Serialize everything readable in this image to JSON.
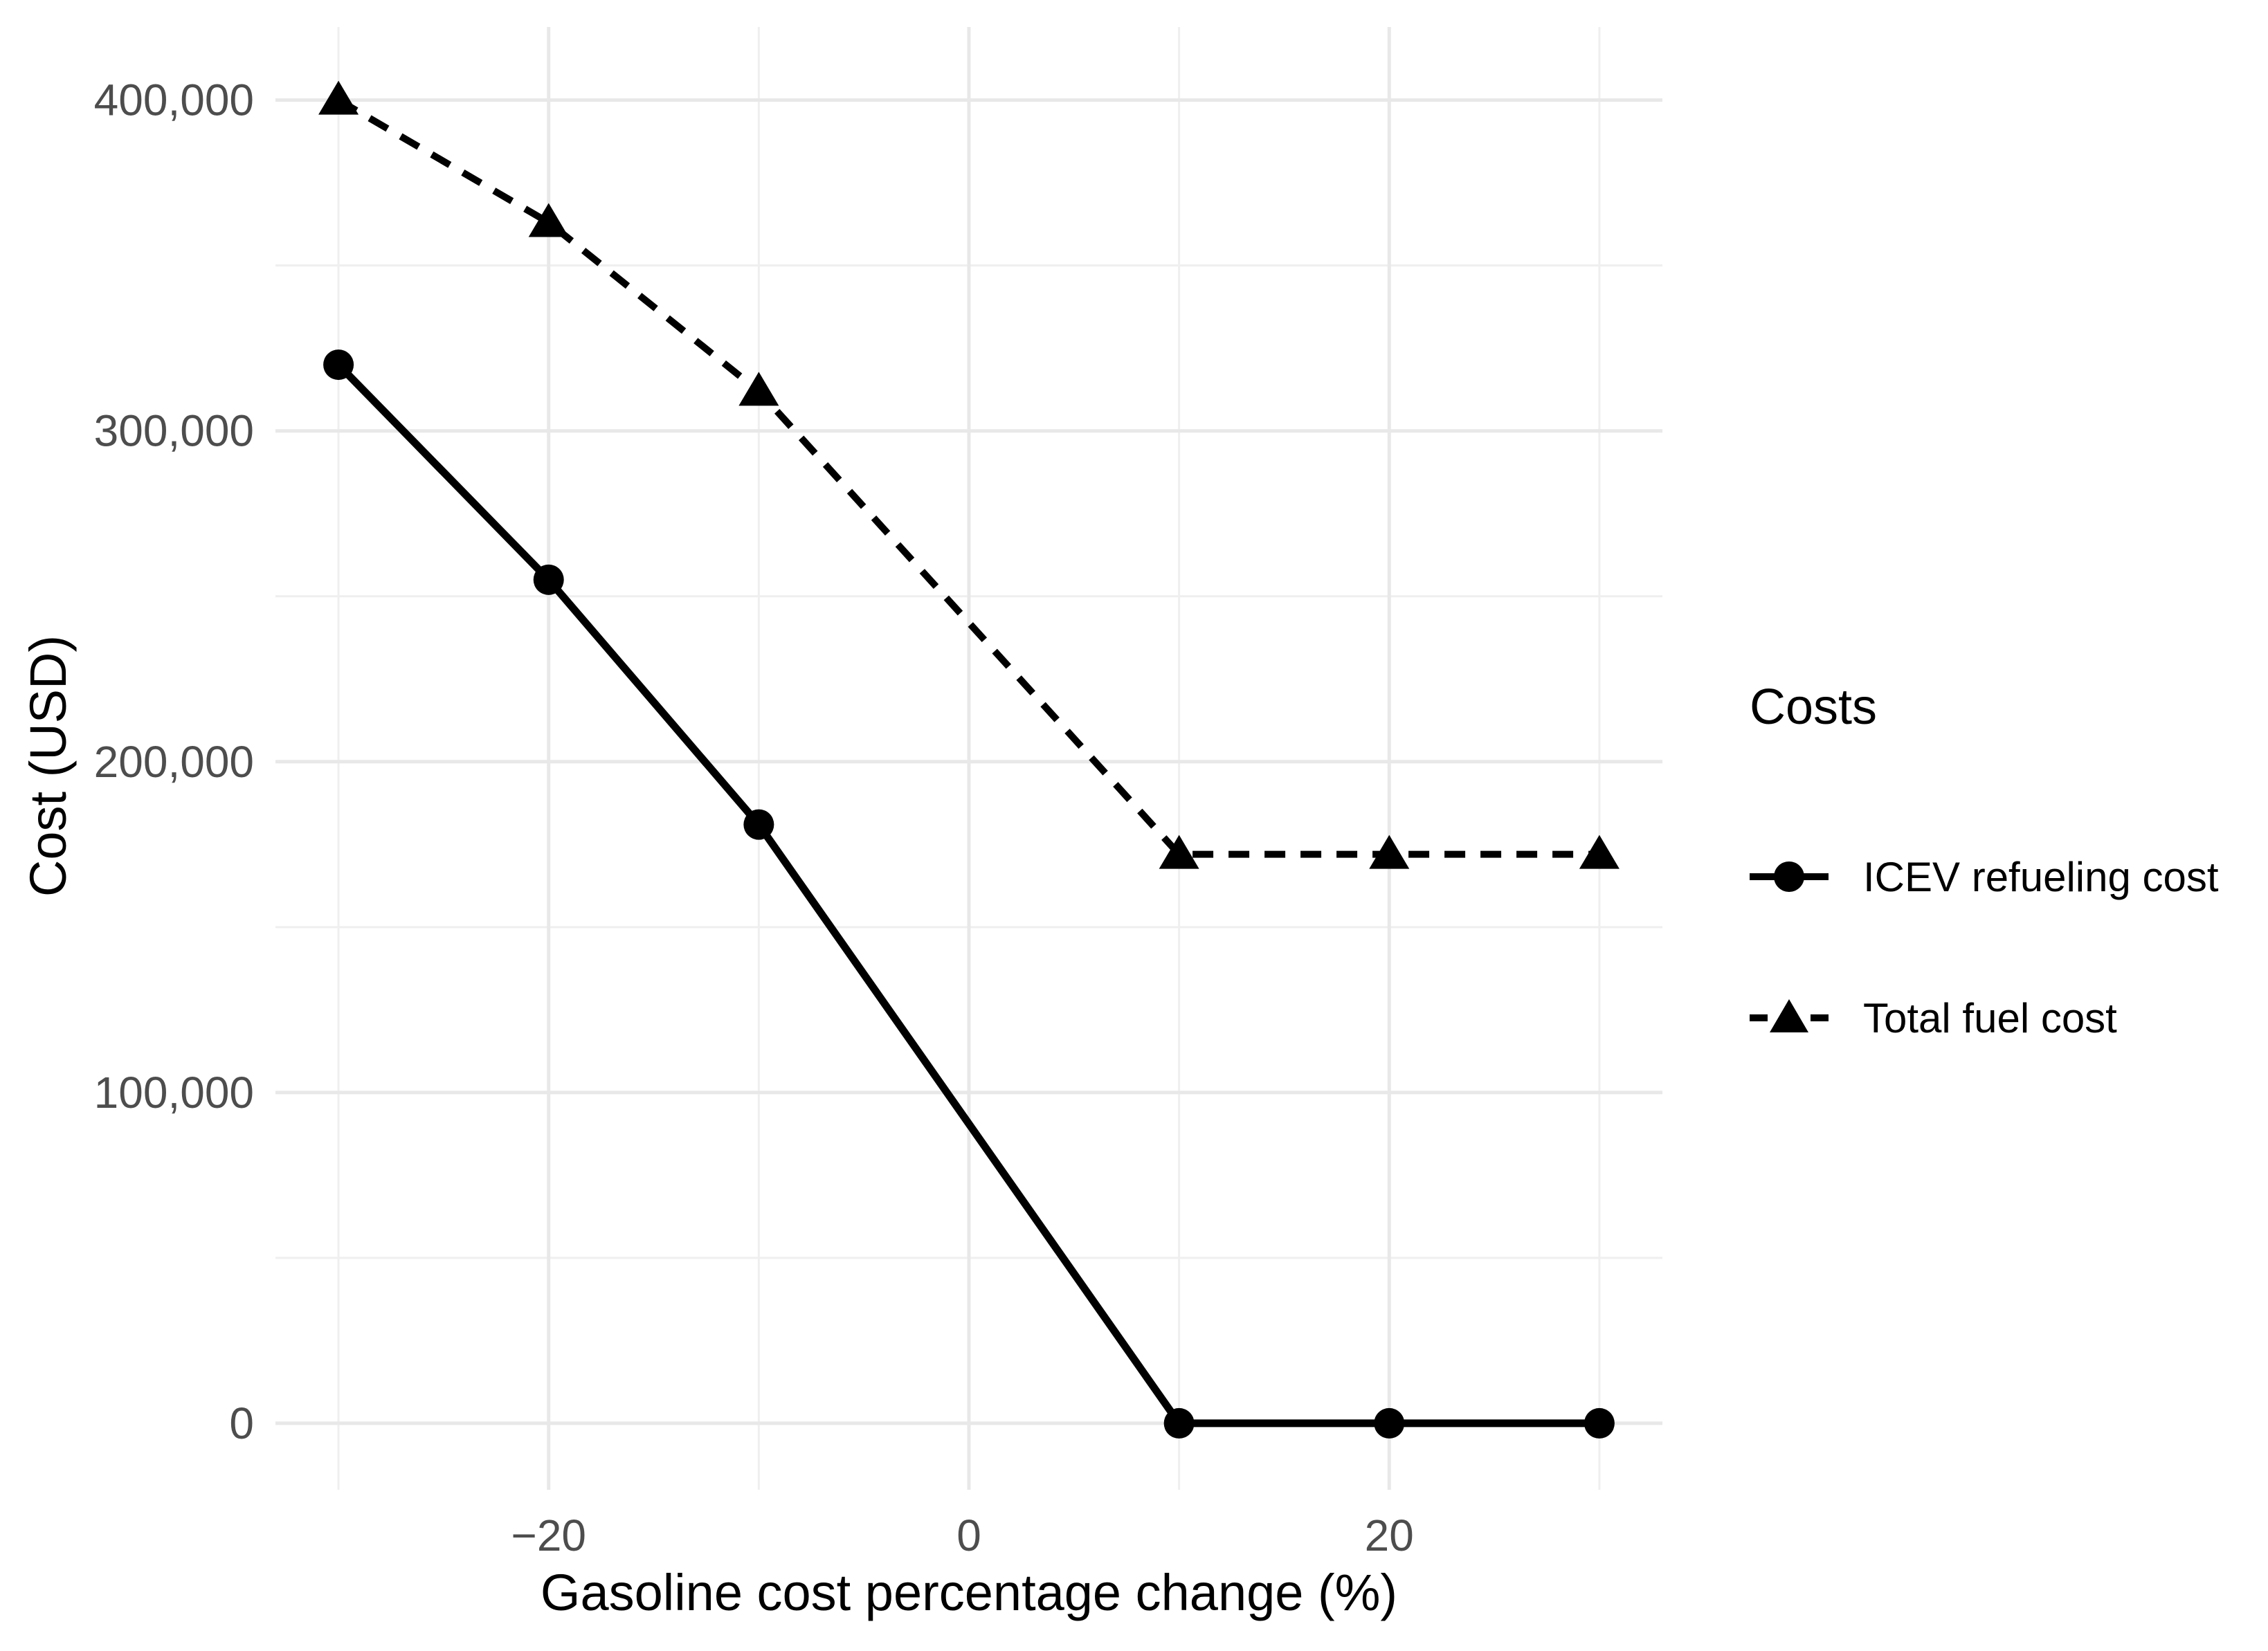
{
  "chart_data": {
    "type": "line",
    "x": [
      -30,
      -20,
      -10,
      10,
      20,
      30
    ],
    "series": [
      {
        "name": "ICEV refueling cost",
        "values": [
          320000,
          255000,
          181000,
          0,
          0,
          0
        ],
        "line_style": "solid",
        "marker": "circle"
      },
      {
        "name": "Total fuel cost",
        "values": [
          400000,
          363000,
          312000,
          172000,
          172000,
          172000
        ],
        "line_style": "dashed",
        "marker": "triangle"
      }
    ],
    "title": "",
    "xlabel": "Gasoline cost percentage change (%)",
    "ylabel": "Cost (USD)",
    "xlim": [
      -33,
      33
    ],
    "ylim": [
      -20100,
      422100
    ],
    "x_ticks": [
      {
        "value": -20,
        "label": "−20"
      },
      {
        "value": 0,
        "label": "0"
      },
      {
        "value": 20,
        "label": "20"
      }
    ],
    "x_minor": [
      -30,
      -10,
      10,
      30
    ],
    "y_ticks": [
      {
        "value": 0,
        "label": "0"
      },
      {
        "value": 100000,
        "label": "100,000"
      },
      {
        "value": 200000,
        "label": "200,000"
      },
      {
        "value": 300000,
        "label": "300,000"
      },
      {
        "value": 400000,
        "label": "400,000"
      }
    ],
    "y_minor": [
      50000,
      150000,
      250000,
      350000
    ],
    "legend": {
      "title": "Costs",
      "position": "right"
    },
    "grid": "on",
    "colors": {
      "line": "#000000",
      "tick_label": "#4d4d4d",
      "grid_major": "#e8e8e8",
      "grid_minor": "#efefef",
      "background": "#ffffff",
      "text": "#000000"
    }
  }
}
